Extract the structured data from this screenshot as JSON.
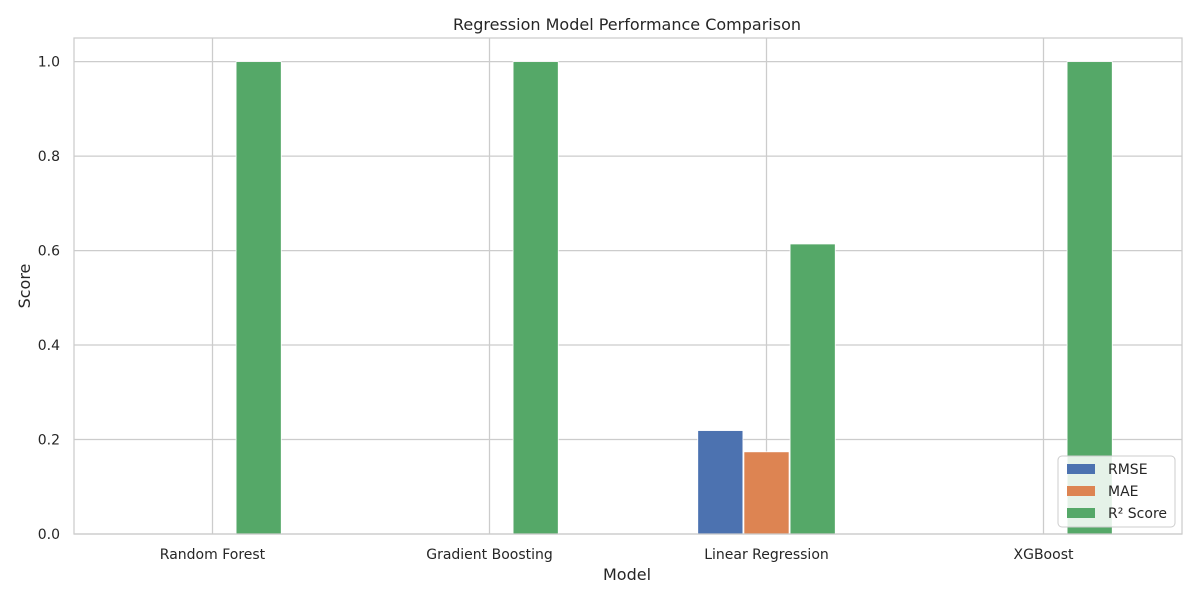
{
  "chart_data": {
    "type": "bar",
    "title": "Regression Model Performance Comparison",
    "xlabel": "Model",
    "ylabel": "Score",
    "categories": [
      "Random Forest",
      "Gradient Boosting",
      "Linear Regression",
      "XGBoost"
    ],
    "series": [
      {
        "name": "RMSE",
        "color": "#4c72b0",
        "values": [
          0.0,
          0.0,
          0.219,
          0.0
        ]
      },
      {
        "name": "MAE",
        "color": "#dd8452",
        "values": [
          0.0,
          0.0,
          0.174,
          0.0
        ]
      },
      {
        "name": "R² Score",
        "color": "#55a868",
        "values": [
          1.0,
          1.0,
          0.614,
          1.0
        ]
      }
    ],
    "ylim": [
      0,
      1.05
    ],
    "yticks": [
      0.0,
      0.2,
      0.4,
      0.6,
      0.8,
      1.0
    ],
    "ytick_labels": [
      "0.0",
      "0.2",
      "0.4",
      "0.6",
      "0.8",
      "1.0"
    ],
    "grid": true,
    "legend_position": "lower-right"
  }
}
